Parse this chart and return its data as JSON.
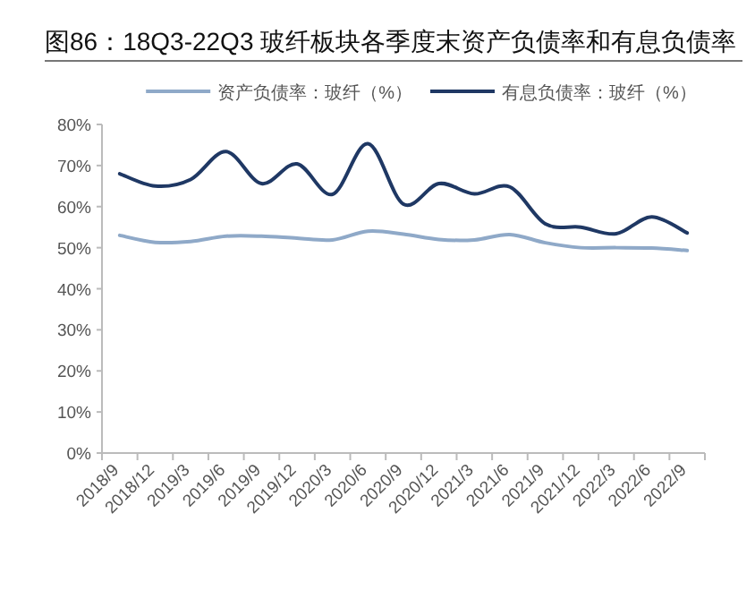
{
  "chart_data": {
    "type": "line",
    "title": "图86：18Q3-22Q3 玻纤板块各季度末资产负债率和有息负债率",
    "categories": [
      "2018/9",
      "2018/12",
      "2019/3",
      "2019/6",
      "2019/9",
      "2019/12",
      "2020/3",
      "2020/6",
      "2020/9",
      "2020/12",
      "2021/3",
      "2021/6",
      "2021/9",
      "2021/12",
      "2022/3",
      "2022/6",
      "2022/9"
    ],
    "series": [
      {
        "name": "资产负债率：玻纤（%）",
        "color": "#8fa9c8",
        "values": [
          53,
          51.3,
          51.5,
          52.8,
          52.8,
          52.3,
          51.9,
          54,
          53.3,
          52,
          51.9,
          53.2,
          51.2,
          50,
          50,
          49.9,
          49.3
        ]
      },
      {
        "name": "有息负债率：玻纤（%）",
        "color": "#1f3864",
        "values": [
          68,
          65,
          66.6,
          73.4,
          65.6,
          70.4,
          63,
          75.3,
          60.6,
          65.6,
          63.1,
          64.8,
          55.8,
          55,
          53.4,
          57.5,
          53.6
        ]
      }
    ],
    "ylim": [
      0,
      80
    ],
    "yticks": [
      {
        "value": 0,
        "label": "0%"
      },
      {
        "value": 10,
        "label": "10%"
      },
      {
        "value": 20,
        "label": "20%"
      },
      {
        "value": 30,
        "label": "30%"
      },
      {
        "value": 40,
        "label": "40%"
      },
      {
        "value": 50,
        "label": "50%"
      },
      {
        "value": 60,
        "label": "60%"
      },
      {
        "value": 70,
        "label": "70%"
      },
      {
        "value": 80,
        "label": "80%"
      }
    ],
    "legend": "top",
    "grid": false
  }
}
